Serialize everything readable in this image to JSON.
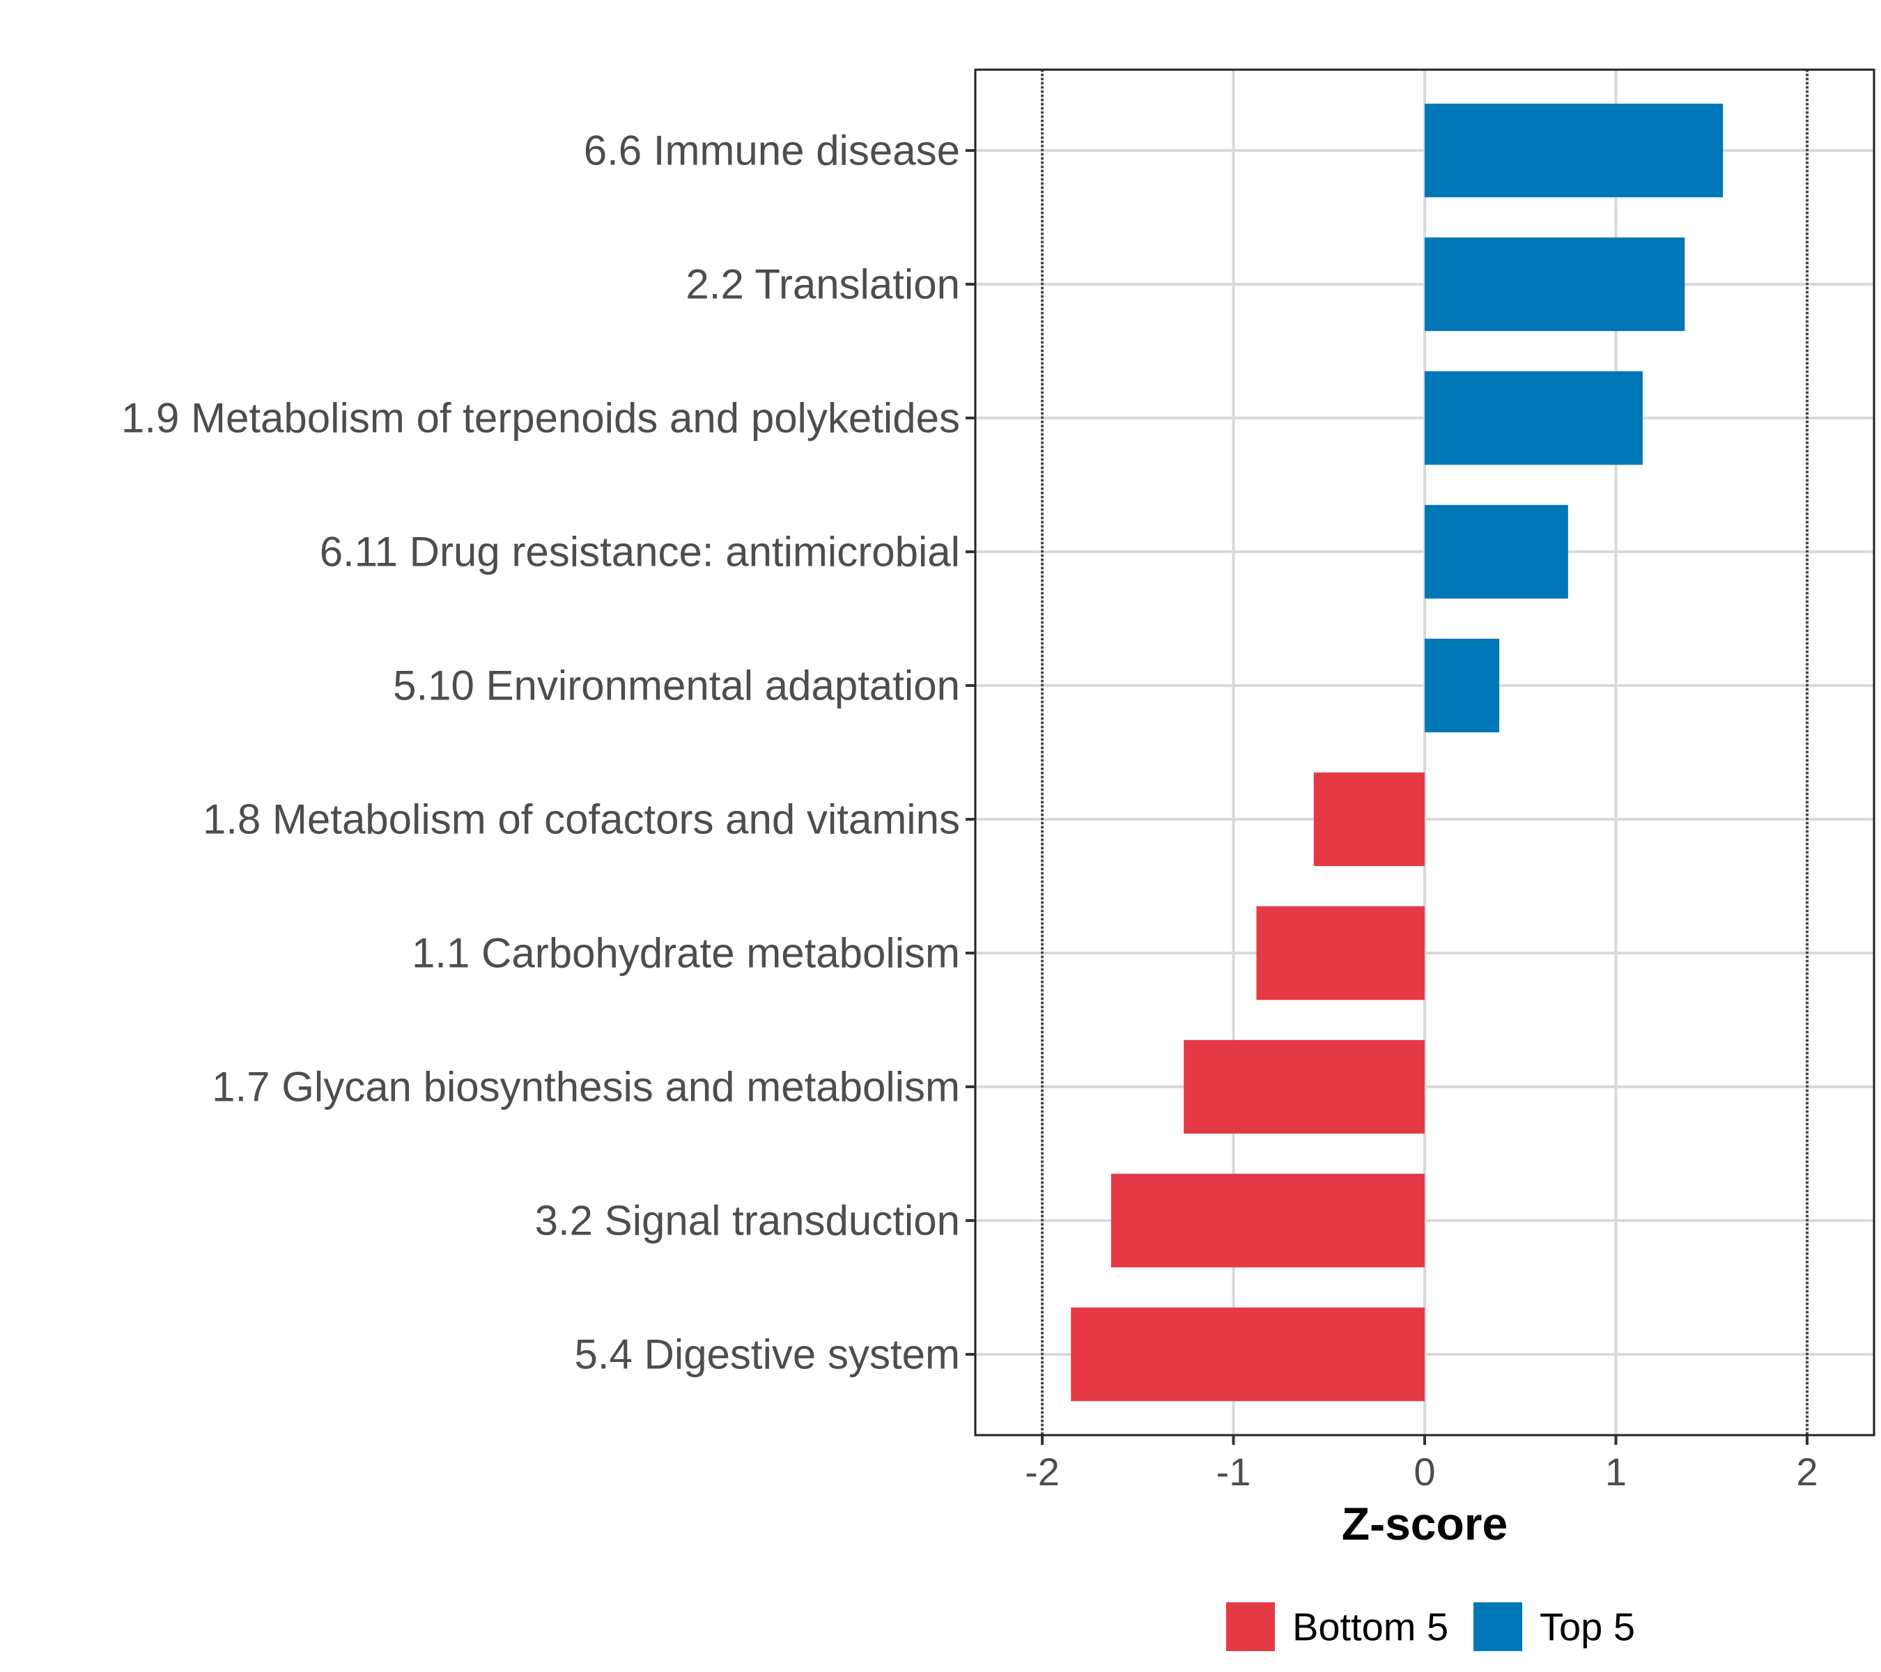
{
  "chart_data": {
    "type": "bar",
    "orientation": "horizontal",
    "xlabel": "Z-score",
    "xlim": [
      -2.35,
      2.35
    ],
    "xticks": [
      -2,
      -1,
      0,
      1,
      2
    ],
    "xtick_labels": [
      "-2",
      "-1",
      "0",
      "1",
      "2"
    ],
    "reference_lines": [
      -2,
      2
    ],
    "grid": true,
    "categories": [
      "6.6 Immune disease",
      "2.2 Translation",
      "1.9 Metabolism of terpenoids and polyketides",
      "6.11 Drug resistance: antimicrobial",
      "5.10 Environmental adaptation",
      "1.8 Metabolism of cofactors and vitamins",
      "1.1 Carbohydrate metabolism",
      "1.7 Glycan biosynthesis and metabolism",
      "3.2 Signal transduction",
      "5.4 Digestive system"
    ],
    "values": [
      1.56,
      1.36,
      1.14,
      0.75,
      0.39,
      -0.58,
      -0.88,
      -1.26,
      -1.64,
      -1.85
    ],
    "groups": [
      "Top 5",
      "Top 5",
      "Top 5",
      "Top 5",
      "Top 5",
      "Bottom 5",
      "Bottom 5",
      "Bottom 5",
      "Bottom 5",
      "Bottom 5"
    ],
    "legend": [
      {
        "label": "Bottom 5",
        "color": "#e63946"
      },
      {
        "label": "Top 5",
        "color": "#0077b6"
      }
    ],
    "legend_position": "bottom"
  }
}
